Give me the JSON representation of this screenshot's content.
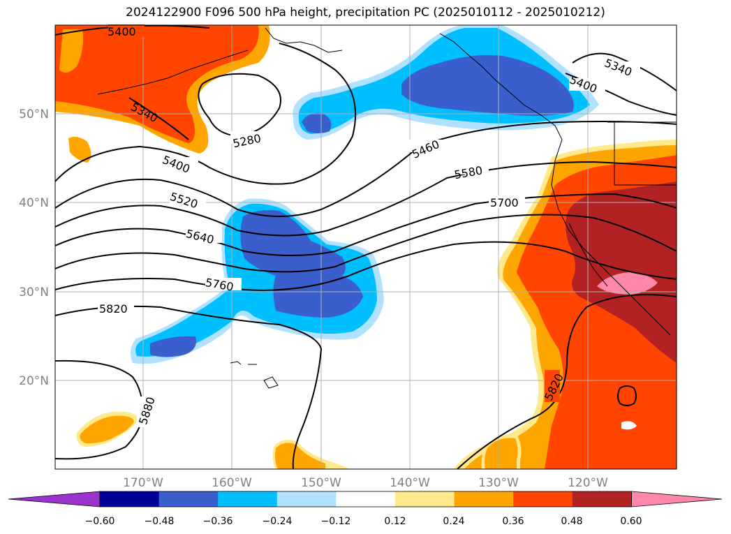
{
  "title": "2024122900 F096 500 hPa height, precipitation PC (2025010112 - 2025010212)",
  "map": {
    "lon_labels": [
      "170°W",
      "160°W",
      "150°W",
      "140°W",
      "130°W",
      "120°W"
    ],
    "lat_labels": [
      "50°N",
      "40°N",
      "30°N",
      "20°N"
    ],
    "contour_labels": [
      "5400",
      "5340",
      "5280",
      "5400",
      "5520",
      "5640",
      "5760",
      "5820",
      "5880",
      "5460",
      "5580",
      "5700",
      "5340",
      "5400",
      "5820"
    ],
    "colors": {
      "grid": "#b0b0b0",
      "axis_label": "#808080",
      "contour": "#000000"
    }
  },
  "colorbar": {
    "ticks": [
      "−0.60",
      "−0.48",
      "−0.36",
      "−0.24",
      "−0.12",
      "0.12",
      "0.24",
      "0.36",
      "0.48",
      "0.60"
    ],
    "colors": [
      "#9933cc",
      "#000099",
      "#3a5fcd",
      "#00bfff",
      "#b0e2ff",
      "#ffffff",
      "#ffe98a",
      "#ffa500",
      "#ff4500",
      "#b22222",
      "#ff88aa"
    ]
  }
}
